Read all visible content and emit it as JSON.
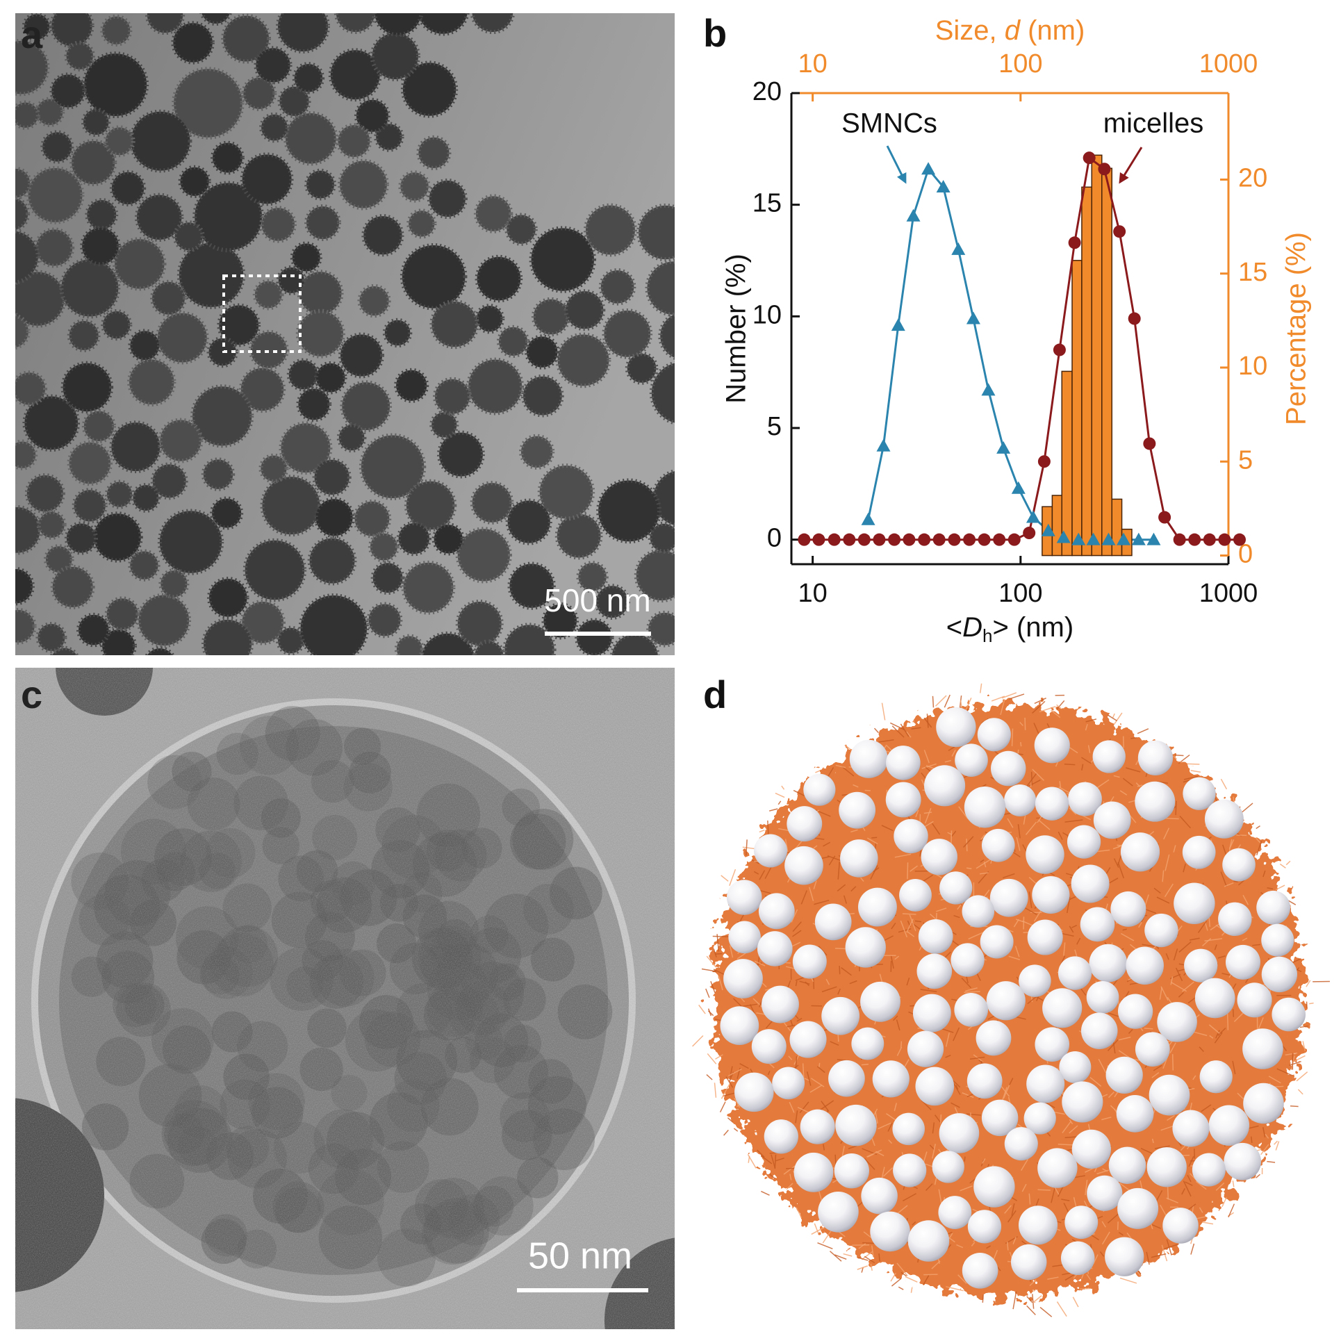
{
  "panels": {
    "a": {
      "label": "a",
      "scale_bar": "500 nm"
    },
    "b": {
      "label": "b"
    },
    "c": {
      "label": "c",
      "scale_bar": "50 nm"
    },
    "d": {
      "label": "d"
    }
  },
  "chart_data": {
    "type": "line",
    "xlabel": [
      "<",
      "D",
      "h",
      "> (nm)"
    ],
    "x2label": [
      "Size, ",
      "d",
      " (nm)"
    ],
    "ylabel": "Number (%)",
    "y2label": "Percentage (%)",
    "xscale": "log",
    "xlim": [
      7.9,
      1000
    ],
    "xticks": [
      10,
      100,
      1000
    ],
    "x2lim": [
      7.9,
      1000
    ],
    "x2ticks": [
      10,
      100,
      1000
    ],
    "ylim": [
      -1.1,
      20
    ],
    "yticks": [
      0,
      5,
      10,
      15,
      20
    ],
    "y2lim": [
      -0.46,
      24.6
    ],
    "y2ticks": [
      0,
      5,
      10,
      15,
      20
    ],
    "secondary_axis_color": "#f08a2a",
    "series": [
      {
        "name": "SMNCs",
        "color": "#2a84ad",
        "marker": "triangle",
        "x": [
          18.5,
          21.9,
          25.8,
          30.5,
          36.0,
          42.5,
          50.2,
          59.3,
          70.0,
          82.7,
          97.7,
          115,
          136,
          161,
          190,
          224,
          265,
          313,
          370,
          437
        ],
        "values": [
          0.9,
          4.2,
          9.6,
          14.5,
          16.6,
          15.8,
          13.0,
          9.9,
          6.7,
          4.1,
          2.3,
          1.0,
          0.4,
          0.1,
          0,
          0,
          0,
          0,
          0,
          0
        ]
      },
      {
        "name": "micelles",
        "color": "#8b1a1d",
        "marker": "circle",
        "x": [
          9.1,
          10.7,
          12.7,
          15.0,
          17.7,
          20.9,
          24.7,
          29.1,
          34.4,
          40.6,
          48.0,
          56.7,
          66.9,
          79.0,
          93.3,
          110,
          130,
          154,
          182,
          214,
          253,
          299,
          353,
          417,
          493,
          582,
          687,
          811,
          958,
          1131
        ],
        "values": [
          0,
          0,
          0,
          0,
          0,
          0,
          0,
          0,
          0,
          0,
          0,
          0,
          0,
          0,
          0,
          0.3,
          3.5,
          8.5,
          13.3,
          17.1,
          16.6,
          13.8,
          9.9,
          4.3,
          1.0,
          0,
          0,
          0,
          0,
          0
        ]
      }
    ],
    "histogram": {
      "axis": "y2",
      "xaxis": "x2",
      "color": "#f08a2a",
      "bins": [
        127,
        142,
        158,
        177,
        197,
        220,
        246,
        275,
        307,
        343
      ],
      "counts": [
        2.6,
        3.2,
        9.8,
        15.7,
        19.6,
        21.3,
        20.6,
        3.0,
        1.4
      ]
    }
  }
}
